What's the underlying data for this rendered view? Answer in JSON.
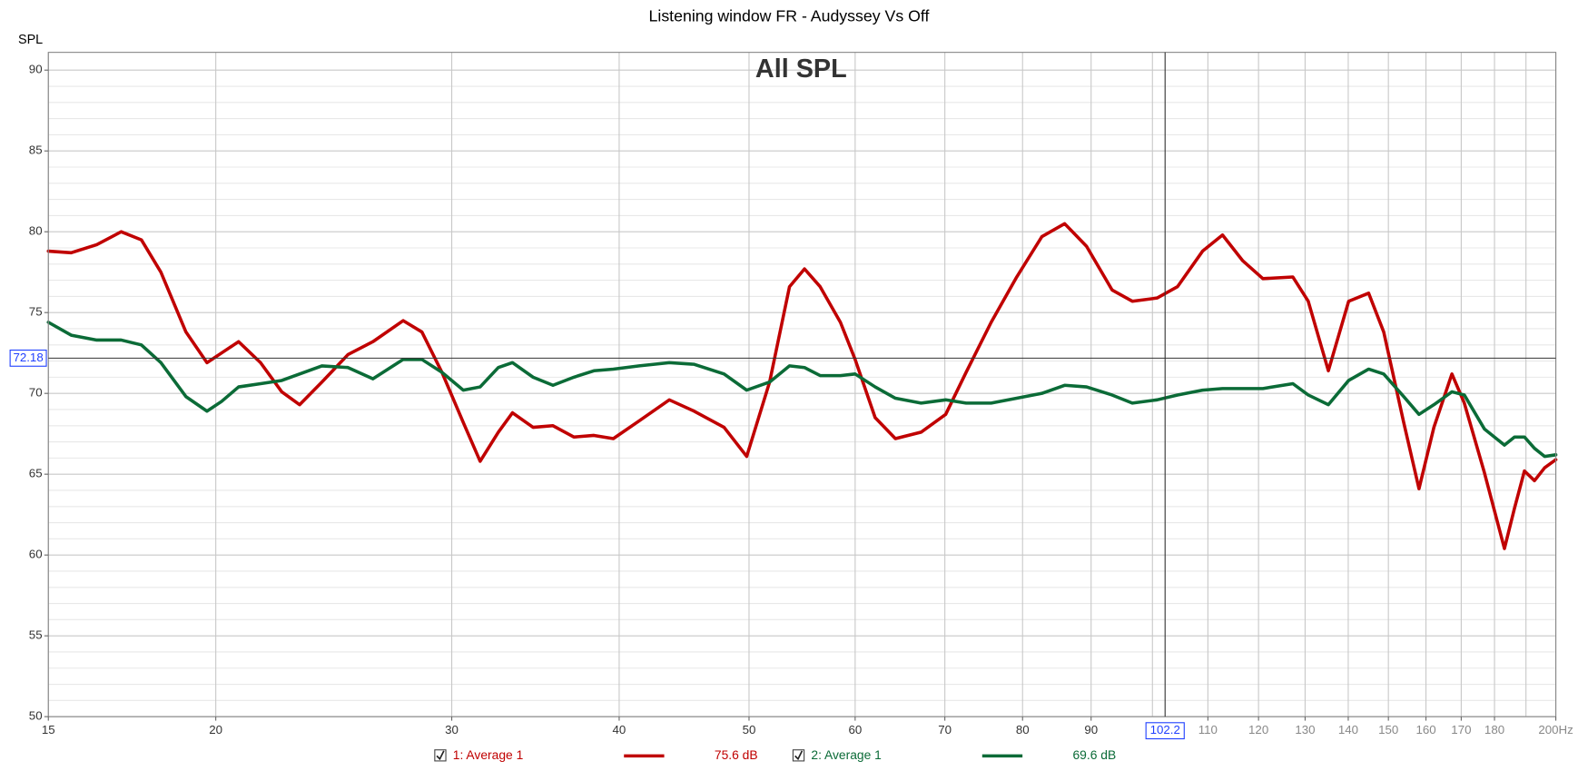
{
  "chart_data": {
    "type": "line",
    "title": "Listening window FR - Audyssey Vs Off",
    "y_label": "SPL",
    "annotation": "All SPL",
    "log_x": true,
    "grid": true,
    "xlim": [
      15,
      200
    ],
    "ylim": [
      50,
      91.1
    ],
    "xticks": [
      15,
      20,
      30,
      40,
      50,
      60,
      70,
      80,
      90,
      110,
      120,
      130,
      140,
      150,
      160,
      170,
      180,
      {
        "value": 200,
        "label": "200Hz"
      }
    ],
    "x_minor_ticks": [
      100,
      190
    ],
    "yticks": [
      50,
      55,
      60,
      65,
      70,
      75,
      80,
      85,
      90
    ],
    "cursor": {
      "x": 102.2,
      "y": 72.18
    },
    "x": [
      15,
      15.6,
      16.3,
      17.0,
      17.6,
      18.2,
      19.0,
      19.7,
      20.2,
      20.8,
      21.6,
      22.4,
      23.1,
      24.0,
      25.1,
      26.2,
      27.6,
      28.5,
      29.5,
      30.6,
      31.5,
      32.5,
      33.3,
      34.5,
      35.7,
      37.0,
      38.3,
      39.6,
      41.4,
      43.6,
      45.5,
      47.9,
      49.8,
      51.8,
      53.6,
      55.0,
      56.5,
      58.5,
      60.0,
      62.1,
      64.3,
      67.2,
      70.1,
      72.6,
      75.8,
      79.2,
      82.7,
      86.0,
      89.3,
      93.3,
      96.6,
      100.8,
      104.4,
      109.0,
      112.8,
      116.8,
      120.9,
      127.3,
      130.7,
      135.3,
      140.1,
      145.0,
      148.8,
      154.0,
      158.1,
      162.2,
      167.3,
      170.9,
      176.9,
      183.1,
      186.3,
      189.5,
      192.8,
      196.2,
      200
    ],
    "series": [
      {
        "name": "1: Average 1",
        "color": "#c00000",
        "readout": {
          "value": 75.6,
          "label": "75.6 dB"
        },
        "values": [
          78.8,
          78.7,
          79.2,
          80.0,
          79.5,
          77.5,
          73.8,
          71.9,
          72.5,
          73.2,
          71.9,
          70.1,
          69.3,
          70.7,
          72.4,
          73.2,
          74.5,
          73.8,
          71.3,
          68.2,
          65.8,
          67.6,
          68.8,
          67.9,
          68.0,
          67.3,
          67.4,
          67.2,
          68.3,
          69.6,
          68.9,
          67.9,
          66.1,
          70.7,
          76.6,
          77.7,
          76.6,
          74.4,
          72.1,
          68.5,
          67.2,
          67.6,
          68.7,
          71.3,
          74.4,
          77.2,
          79.7,
          80.5,
          79.1,
          76.4,
          75.7,
          75.9,
          76.6,
          78.8,
          79.8,
          78.2,
          77.1,
          77.2,
          75.7,
          71.4,
          75.7,
          76.2,
          73.8,
          68.2,
          64.1,
          67.9,
          71.2,
          69.4,
          65.1,
          60.4,
          62.9,
          65.2,
          64.6,
          65.4,
          65.9
        ]
      },
      {
        "name": "2: Average 1",
        "color": "#0b6b37",
        "readout": {
          "value": 69.6,
          "label": "69.6 dB"
        },
        "values": [
          74.4,
          73.6,
          73.3,
          73.3,
          73.0,
          71.9,
          69.8,
          68.9,
          69.5,
          70.4,
          70.6,
          70.8,
          71.2,
          71.7,
          71.6,
          70.9,
          72.1,
          72.1,
          71.3,
          70.2,
          70.4,
          71.6,
          71.9,
          71.0,
          70.5,
          71.0,
          71.4,
          71.5,
          71.7,
          71.9,
          71.8,
          71.2,
          70.2,
          70.7,
          71.7,
          71.6,
          71.1,
          71.1,
          71.2,
          70.4,
          69.7,
          69.4,
          69.6,
          69.4,
          69.4,
          69.7,
          70.0,
          70.5,
          70.4,
          69.9,
          69.4,
          69.6,
          69.9,
          70.2,
          70.3,
          70.3,
          70.3,
          70.6,
          69.9,
          69.3,
          70.8,
          71.5,
          71.2,
          69.8,
          68.7,
          69.3,
          70.1,
          69.9,
          67.8,
          66.8,
          67.3,
          67.3,
          66.6,
          66.1,
          66.2
        ]
      }
    ]
  }
}
